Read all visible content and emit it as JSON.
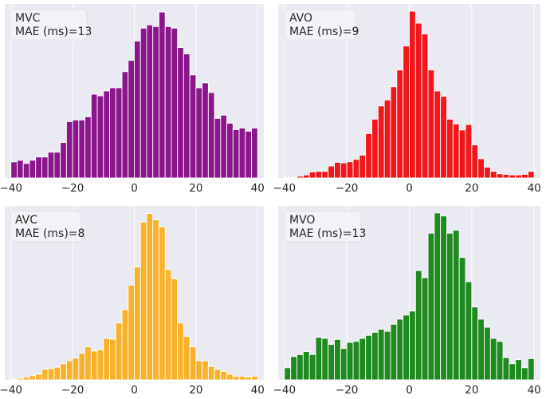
{
  "chart_data": [
    {
      "type": "bar",
      "panel": "top-left",
      "label_line1": "MVC",
      "label_line2": "MAE (ms)=13",
      "color": "#8b168b",
      "xlim": [
        -42,
        42
      ],
      "xticks": [
        -40,
        -20,
        0,
        20,
        40
      ],
      "xtick_labels": [
        "−40",
        "−20",
        "0",
        "20",
        "40"
      ],
      "bin_centers": [
        -39,
        -37,
        -35,
        -33,
        -31,
        -29,
        -27,
        -25,
        -23,
        -21,
        -19,
        -17,
        -15,
        -13,
        -11,
        -9,
        -7,
        -5,
        -3,
        -1,
        1,
        3,
        5,
        7,
        9,
        11,
        13,
        15,
        17,
        19,
        21,
        23,
        25,
        27,
        29,
        31,
        33,
        35,
        37,
        39
      ],
      "values": [
        10,
        11,
        9,
        11,
        13,
        13,
        16,
        16,
        22,
        35,
        36,
        36,
        38,
        52,
        51,
        54,
        56,
        56,
        66,
        73,
        85,
        93,
        95,
        94,
        103,
        94,
        93,
        81,
        77,
        64,
        56,
        59,
        53,
        37,
        39,
        34,
        30,
        31,
        29,
        31
      ],
      "ylim": [
        0,
        108
      ]
    },
    {
      "type": "bar",
      "panel": "top-right",
      "label_line1": "AVO",
      "label_line2": "MAE (ms)=9",
      "color": "#f0181c",
      "xlim": [
        -42,
        42
      ],
      "xticks": [
        -40,
        -20,
        0,
        20,
        40
      ],
      "xtick_labels": [
        "−40",
        "−20",
        "0",
        "20",
        "40"
      ],
      "bin_centers": [
        -39,
        -37,
        -35,
        -33,
        -31,
        -29,
        -27,
        -25,
        -23,
        -21,
        -19,
        -17,
        -15,
        -13,
        -11,
        -9,
        -7,
        -5,
        -3,
        -1,
        1,
        3,
        5,
        7,
        9,
        11,
        13,
        15,
        17,
        19,
        21,
        23,
        25,
        27,
        29,
        31,
        33,
        35,
        37,
        39
      ],
      "values": [
        1,
        1,
        3,
        5,
        10,
        11,
        11,
        20,
        26,
        25,
        27,
        31,
        38,
        74,
        98,
        120,
        130,
        152,
        180,
        220,
        278,
        258,
        240,
        180,
        145,
        136,
        98,
        90,
        80,
        89,
        55,
        32,
        18,
        11,
        7,
        6,
        5,
        5,
        6,
        11
      ],
      "ylim": [
        0,
        290
      ]
    },
    {
      "type": "bar",
      "panel": "bottom-left",
      "label_line1": "AVC",
      "label_line2": "MAE (ms)=8",
      "color": "#f8b12c",
      "xlim": [
        -42,
        42
      ],
      "xticks": [
        -40,
        -20,
        0,
        20,
        40
      ],
      "xtick_labels": [
        "−40",
        "−20",
        "0",
        "20",
        "40"
      ],
      "bin_centers": [
        -39,
        -37,
        -35,
        -33,
        -31,
        -29,
        -27,
        -25,
        -23,
        -21,
        -19,
        -17,
        -15,
        -13,
        -11,
        -9,
        -7,
        -5,
        -3,
        -1,
        1,
        3,
        5,
        7,
        9,
        11,
        13,
        15,
        17,
        19,
        21,
        23,
        25,
        27,
        29,
        31,
        33,
        35,
        37,
        39
      ],
      "values": [
        1,
        2,
        4,
        6,
        8,
        15,
        16,
        18,
        23,
        27,
        31,
        38,
        47,
        41,
        43,
        59,
        58,
        81,
        100,
        135,
        161,
        225,
        237,
        228,
        218,
        157,
        144,
        81,
        62,
        47,
        27,
        27,
        19,
        15,
        12,
        8,
        5,
        5,
        4,
        5
      ],
      "ylim": [
        0,
        248
      ]
    },
    {
      "type": "bar",
      "panel": "bottom-right",
      "label_line1": "MVO",
      "label_line2": "MAE (ms)=13",
      "color": "#1f8a1f",
      "xlim": [
        -42,
        42
      ],
      "xticks": [
        -40,
        -20,
        0,
        20,
        40
      ],
      "xtick_labels": [
        "−40",
        "−20",
        "0",
        "20",
        "40"
      ],
      "bin_centers": [
        -39,
        -37,
        -35,
        -33,
        -31,
        -29,
        -27,
        -25,
        -23,
        -21,
        -19,
        -17,
        -15,
        -13,
        -11,
        -9,
        -7,
        -5,
        -3,
        -1,
        1,
        3,
        5,
        7,
        9,
        11,
        13,
        15,
        17,
        19,
        21,
        23,
        25,
        27,
        29,
        31,
        33,
        35,
        37,
        39
      ],
      "values": [
        12,
        23,
        25,
        28,
        25,
        42,
        41,
        35,
        40,
        31,
        37,
        38,
        41,
        44,
        47,
        50,
        48,
        55,
        60,
        64,
        68,
        108,
        101,
        145,
        165,
        162,
        145,
        148,
        121,
        97,
        72,
        60,
        52,
        41,
        38,
        22,
        16,
        20,
        12,
        21
      ],
      "ylim": [
        0,
        172
      ]
    }
  ]
}
